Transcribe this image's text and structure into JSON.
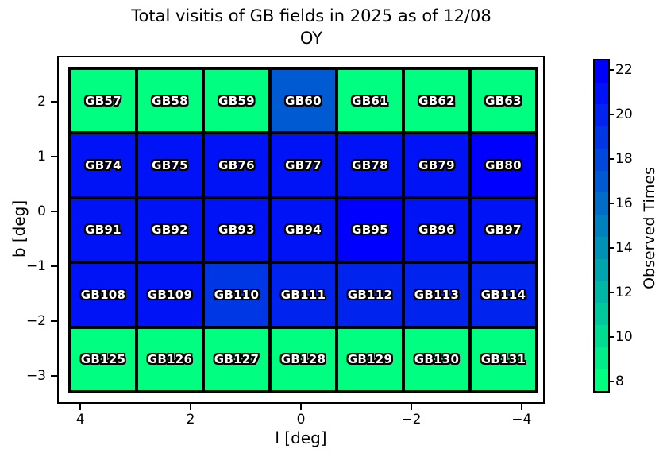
{
  "title": {
    "line1": "Total visitis of GB fields in 2025 as of 12/08",
    "line2": "OY"
  },
  "chart_data": {
    "type": "heatmap",
    "title": "Total visitis of GB fields in 2025 as of 12/08 OY",
    "xlabel": "l [deg]",
    "ylabel": "b [deg]",
    "x_axis_inverted": true,
    "xlim": [
      4.42,
      -4.42
    ],
    "ylim": [
      -3.51,
      2.84
    ],
    "x_ticks": [
      {
        "value": 4,
        "label": "4"
      },
      {
        "value": 2,
        "label": "2"
      },
      {
        "value": 0,
        "label": "0"
      },
      {
        "value": -2,
        "label": "−2"
      },
      {
        "value": -4,
        "label": "−4"
      }
    ],
    "y_ticks": [
      {
        "value": 2,
        "label": "2"
      },
      {
        "value": 1,
        "label": "1"
      },
      {
        "value": 0,
        "label": "0"
      },
      {
        "value": -1,
        "label": "−1"
      },
      {
        "value": -2,
        "label": "−2"
      },
      {
        "value": -3,
        "label": "−3"
      }
    ],
    "l_centers": [
      3.6,
      2.4,
      1.2,
      0.0,
      -1.2,
      -2.5,
      -3.7
    ],
    "colorbar": {
      "label": "Observed Times",
      "colormap": "winter_r",
      "range": [
        7.5,
        22.5
      ],
      "ticks": [
        {
          "value": 22,
          "label": "22"
        },
        {
          "value": 20,
          "label": "20"
        },
        {
          "value": 18,
          "label": "18"
        },
        {
          "value": 16,
          "label": "16"
        },
        {
          "value": 14,
          "label": "14"
        },
        {
          "value": 12,
          "label": "12"
        },
        {
          "value": 10,
          "label": "10"
        },
        {
          "value": 8,
          "label": "8"
        }
      ],
      "levels": [
        {
          "value": 22,
          "color": "#0000FF"
        },
        {
          "value": 21,
          "color": "#0012F6"
        },
        {
          "value": 20,
          "color": "#0024ED"
        },
        {
          "value": 19,
          "color": "#0037E4"
        },
        {
          "value": 18,
          "color": "#0049DB"
        },
        {
          "value": 17,
          "color": "#005BD2"
        },
        {
          "value": 16,
          "color": "#006DC8"
        },
        {
          "value": 15,
          "color": "#0080BF"
        },
        {
          "value": 14,
          "color": "#0092B6"
        },
        {
          "value": 13,
          "color": "#00A4AD"
        },
        {
          "value": 12,
          "color": "#00B6A4"
        },
        {
          "value": 11,
          "color": "#00C89B"
        },
        {
          "value": 10,
          "color": "#00DB92"
        },
        {
          "value": 9,
          "color": "#00ED89"
        },
        {
          "value": 8,
          "color": "#00FF80"
        }
      ]
    },
    "rows": [
      {
        "b_center": 2.0,
        "fields": [
          {
            "name": "GB57",
            "value": 8
          },
          {
            "name": "GB58",
            "value": 8
          },
          {
            "name": "GB59",
            "value": 8
          },
          {
            "name": "GB60",
            "value": 17
          },
          {
            "name": "GB61",
            "value": 8
          },
          {
            "name": "GB62",
            "value": 8
          },
          {
            "name": "GB63",
            "value": 8
          }
        ]
      },
      {
        "b_center": 0.85,
        "fields": [
          {
            "name": "GB74",
            "value": 21
          },
          {
            "name": "GB75",
            "value": 21
          },
          {
            "name": "GB76",
            "value": 21
          },
          {
            "name": "GB77",
            "value": 21
          },
          {
            "name": "GB78",
            "value": 21
          },
          {
            "name": "GB79",
            "value": 21
          },
          {
            "name": "GB80",
            "value": 22
          }
        ]
      },
      {
        "b_center": -0.35,
        "fields": [
          {
            "name": "GB91",
            "value": 21
          },
          {
            "name": "GB92",
            "value": 21
          },
          {
            "name": "GB93",
            "value": 21
          },
          {
            "name": "GB94",
            "value": 21
          },
          {
            "name": "GB95",
            "value": 22
          },
          {
            "name": "GB96",
            "value": 21
          },
          {
            "name": "GB97",
            "value": 21
          }
        ]
      },
      {
        "b_center": -1.5,
        "fields": [
          {
            "name": "GB108",
            "value": 21
          },
          {
            "name": "GB109",
            "value": 21
          },
          {
            "name": "GB110",
            "value": 19
          },
          {
            "name": "GB111",
            "value": 20
          },
          {
            "name": "GB112",
            "value": 20
          },
          {
            "name": "GB113",
            "value": 20
          },
          {
            "name": "GB114",
            "value": 20
          }
        ]
      },
      {
        "b_center": -2.7,
        "fields": [
          {
            "name": "GB125",
            "value": 8
          },
          {
            "name": "GB126",
            "value": 8
          },
          {
            "name": "GB127",
            "value": 8
          },
          {
            "name": "GB128",
            "value": 8
          },
          {
            "name": "GB129",
            "value": 8
          },
          {
            "name": "GB130",
            "value": 8
          },
          {
            "name": "GB131",
            "value": 8
          }
        ]
      }
    ]
  }
}
